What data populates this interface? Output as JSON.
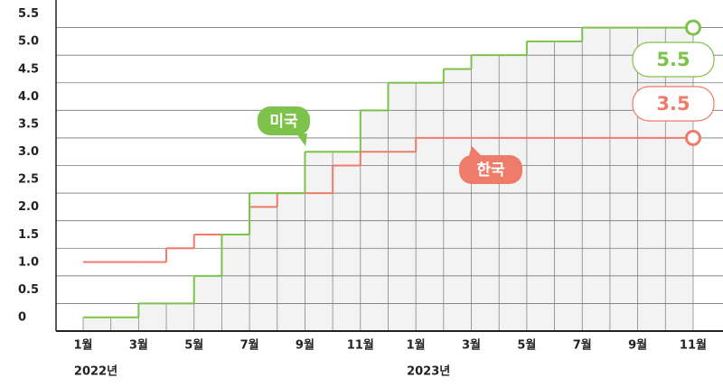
{
  "chart_data": {
    "type": "step",
    "categories": [
      "1월",
      null,
      "3월",
      null,
      "5월",
      null,
      "7월",
      null,
      "9월",
      null,
      "11월",
      null,
      "1월",
      null,
      "3월",
      null,
      "5월",
      null,
      "7월",
      null,
      "9월",
      null,
      "11월"
    ],
    "series": [
      {
        "name": "미국",
        "color": "#7dc24b",
        "values": [
          0.25,
          0.25,
          0.5,
          0.5,
          1.0,
          1.75,
          2.5,
          2.5,
          3.25,
          3.25,
          4.0,
          4.5,
          4.5,
          4.75,
          5.0,
          5.0,
          5.25,
          5.25,
          5.5,
          5.5,
          5.5,
          5.5,
          5.5
        ]
      },
      {
        "name": "한국",
        "color": "#ef7b6a",
        "values": [
          1.25,
          1.25,
          1.25,
          1.5,
          1.75,
          1.75,
          2.25,
          2.5,
          2.5,
          3.0,
          3.25,
          3.25,
          3.5,
          3.5,
          3.5,
          3.5,
          3.5,
          3.5,
          3.5,
          3.5,
          3.5,
          3.5,
          3.5
        ]
      }
    ],
    "ylim": [
      0,
      6
    ],
    "yticks": [
      0,
      0.5,
      {
        "value": 1,
        "label": "1.0"
      },
      1.5,
      {
        "value": 2,
        "label": "2.0"
      },
      2.5,
      {
        "value": 3,
        "label": "3.0"
      },
      3.5,
      {
        "value": 4,
        "label": "4.0"
      },
      4.5,
      {
        "value": 5,
        "label": "5.0"
      },
      5.5
    ],
    "annotations": [
      {
        "text": "2022년",
        "index": 0
      },
      {
        "text": "2023년",
        "index": 12
      }
    ],
    "grid": true
  }
}
